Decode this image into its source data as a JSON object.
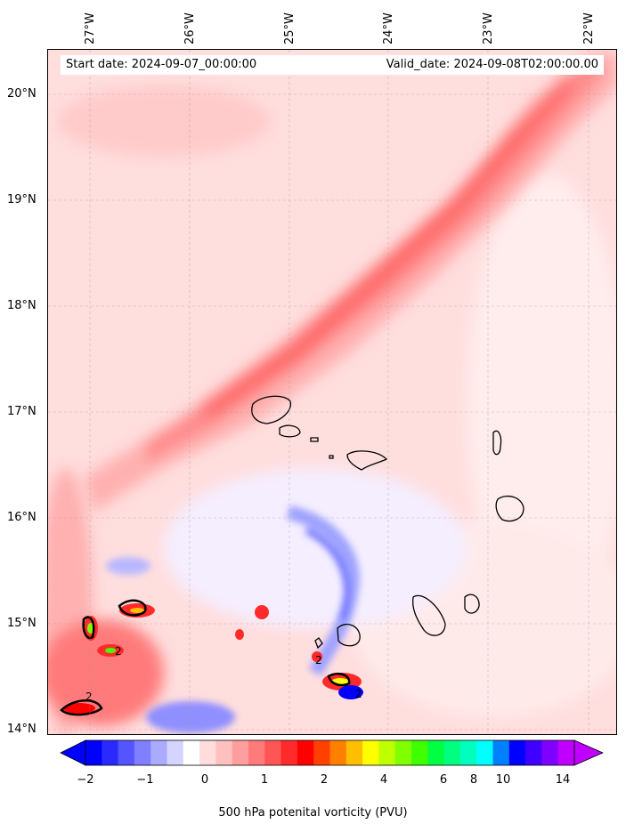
{
  "map": {
    "start_label": "Start date: 2024-09-07_00:00:00",
    "valid_label": "Valid_date: 2024-09-08T02:00:00.00",
    "lon_labels": [
      "27°W",
      "26°W",
      "25°W",
      "24°W",
      "23°W",
      "22°W"
    ],
    "lat_labels": [
      "20°N",
      "19°N",
      "18°N",
      "17°N",
      "16°N",
      "15°N",
      "14°N"
    ],
    "contour_labels": [
      "2",
      "2",
      "2",
      "2"
    ]
  },
  "colorbar": {
    "label": "500 hPa potenital vorticity (PVU)",
    "tick_labels": [
      "−2",
      "−1",
      "0",
      "1",
      "2",
      "4",
      "6",
      "8",
      "10",
      "14"
    ],
    "colors": [
      "#0000ff",
      "#2a2aff",
      "#5555ff",
      "#7f7fff",
      "#aaaaff",
      "#d4d4ff",
      "#ffffff",
      "#ffdddd",
      "#ffc0c0",
      "#ff9e9e",
      "#ff7a7a",
      "#ff5555",
      "#ff2a2a",
      "#ff0000",
      "#ff4000",
      "#ff8000",
      "#ffbf00",
      "#ffff00",
      "#bfff00",
      "#80ff00",
      "#40ff00",
      "#00ff40",
      "#00ff80",
      "#00ffbf",
      "#00ffff",
      "#0080ff",
      "#0000ff",
      "#4000ff",
      "#8000ff",
      "#bf00ff"
    ]
  },
  "colors": {
    "background_pink": "#ffe6e6",
    "light_pink": "#ffcccc",
    "mid_red": "#ff9999",
    "strong_red": "#ff6666",
    "blue_neg": "#9999ff",
    "coastline": "#000000"
  }
}
